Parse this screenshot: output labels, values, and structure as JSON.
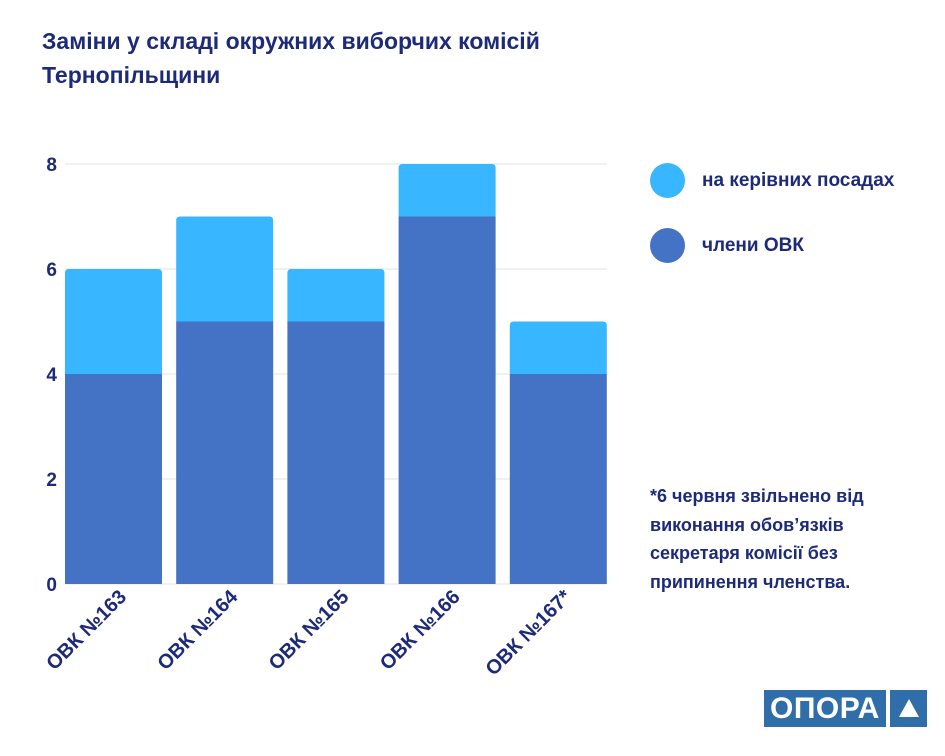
{
  "title": [
    "Заміни у складі окружних виборчих комісій",
    "Тернопільщини"
  ],
  "legend": [
    {
      "label": "на керівних посадах",
      "color": "#38b6ff"
    },
    {
      "label": "члени ОВК",
      "color": "#4472c4"
    }
  ],
  "note": "*6 червня звільнено від виконання обов’язків секретаря комісії без припинення членства.",
  "logo": "ОПОРА",
  "chart_data": {
    "type": "bar",
    "stacked": true,
    "title": "Заміни у складі окружних виборчих комісій Тернопільщини",
    "categories": [
      "ОВК №163",
      "ОВК №164",
      "ОВК №165",
      "ОВК №166",
      "ОВК №167*"
    ],
    "series": [
      {
        "name": "члени ОВК",
        "values": [
          4,
          5,
          5,
          7,
          4
        ],
        "color": "#4472c4"
      },
      {
        "name": "на керівних посадах",
        "values": [
          2,
          2,
          1,
          1,
          1
        ],
        "color": "#38b6ff"
      }
    ],
    "yticks": [
      "0",
      "2",
      "4",
      "6",
      "8"
    ],
    "ylim": [
      0,
      8
    ],
    "grid": true,
    "legend_position": "right"
  }
}
